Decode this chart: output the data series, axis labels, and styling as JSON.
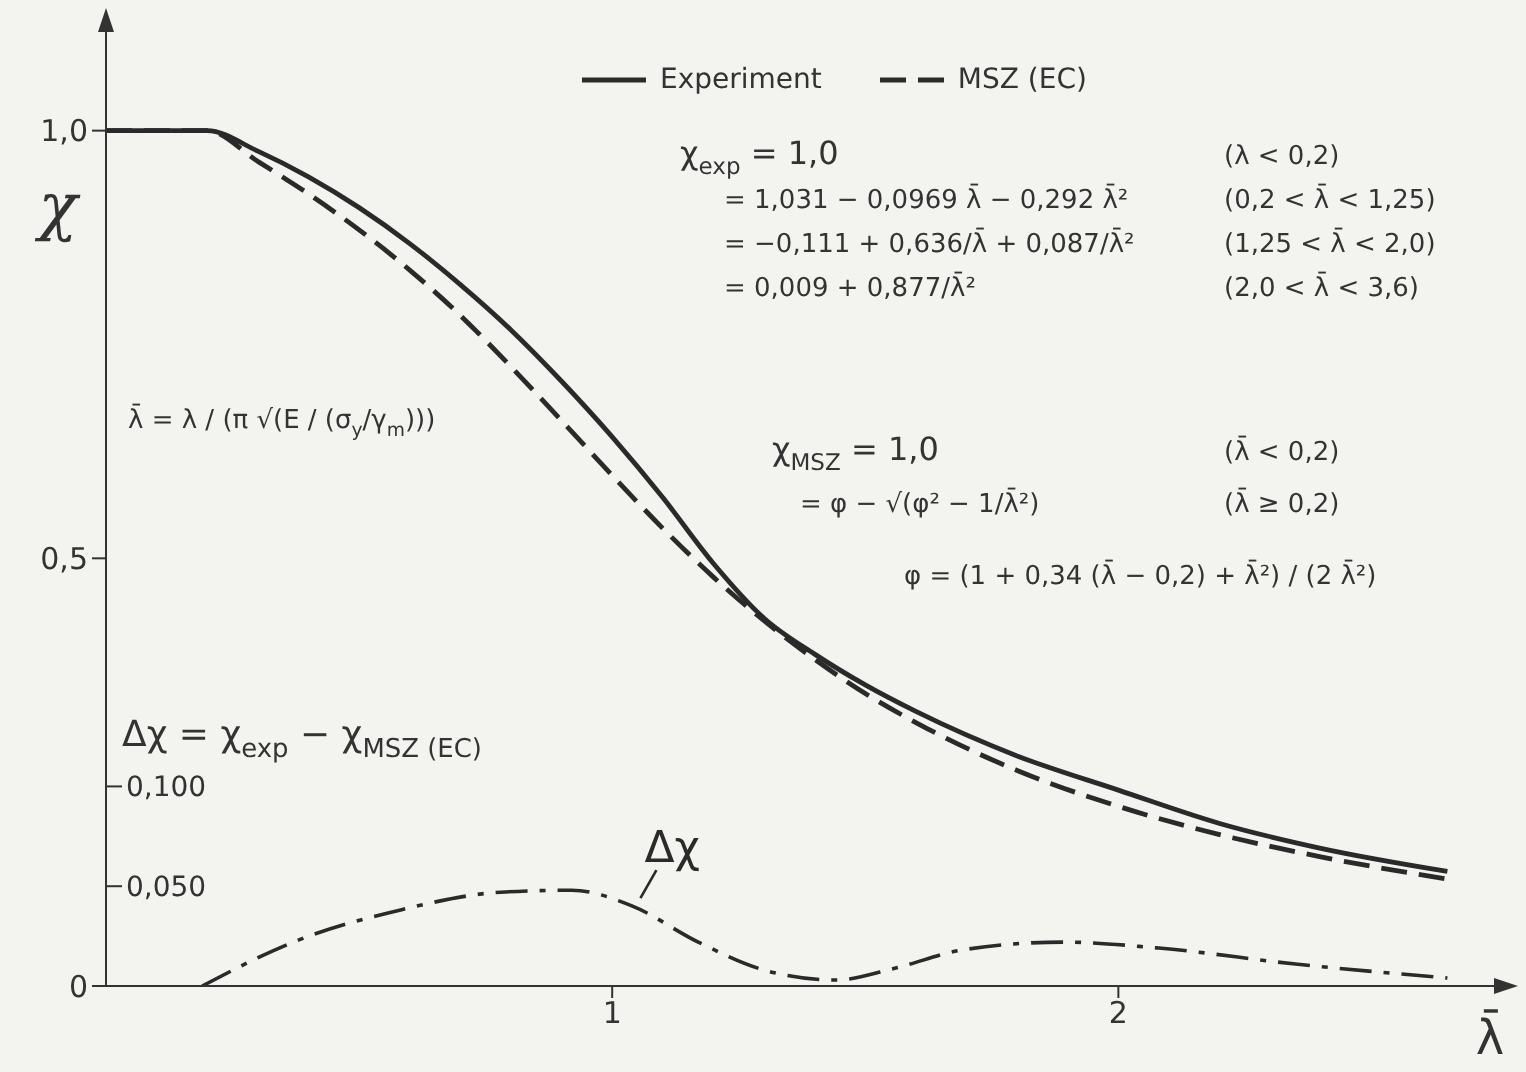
{
  "chart_data": {
    "type": "line",
    "xlabel": "λ̄",
    "ylabel": "χ",
    "y2label": "Δχ = χ$_{exp}$ − χ$_{MSZ (EC)}$",
    "annotations": [
      "λ̄ = λ / (π √(E / (σ$_{y}$/γ$_{m}$)))",
      "χ$_{exp}$ = 1,0",
      "= 1,031 − 0,0969 λ̄ − 0,292 λ̄²",
      "= −0,111 + 0,636/λ̄ + 0,087/λ̄²",
      "= 0,009 + 0,877/λ̄²",
      "(λ < 0,2)",
      "(0,2 < λ̄ < 1,25)",
      "(1,25 < λ̄ < 2,0)",
      "(2,0 < λ̄ < 3,6)",
      "χ$_{MSZ}$ = 1,0",
      "= φ − √(φ² − 1/λ̄²)",
      "(λ̄ < 0,2)",
      "(λ̄ ≥ 0,2)",
      "φ = (1 + 0,34 (λ̄ − 0,2) + λ̄²) / (2 λ̄²)"
    ],
    "x": [
      0,
      0.2,
      0.3,
      0.4,
      0.5,
      0.6,
      0.7,
      0.8,
      0.9,
      1.0,
      1.1,
      1.2,
      1.3,
      1.4,
      1.5,
      1.6,
      1.8,
      2.0,
      2.2,
      2.4,
      2.65
    ],
    "series": [
      {
        "name": "Experiment",
        "color": "#2a2a2a",
        "line_style": "solid",
        "values": [
          1.0,
          1.0,
          0.976,
          0.946,
          0.91,
          0.868,
          0.82,
          0.767,
          0.707,
          0.642,
          0.571,
          0.494,
          0.43,
          0.388,
          0.352,
          0.321,
          0.269,
          0.229,
          0.19,
          0.161,
          0.134
        ]
      },
      {
        "name": "MSZ (EC)",
        "color": "#2a2a2a",
        "line_style": "dashed",
        "values": [
          1.0,
          1.0,
          0.964,
          0.926,
          0.884,
          0.837,
          0.784,
          0.724,
          0.661,
          0.597,
          0.535,
          0.478,
          0.427,
          0.382,
          0.342,
          0.308,
          0.252,
          0.21,
          0.177,
          0.151,
          0.125
        ]
      },
      {
        "name": "Δχ",
        "color": "#2a2a2a",
        "line_style": "dashdot",
        "axis": "y2",
        "x": [
          0.19,
          0.38,
          0.58,
          0.78,
          0.92,
          1.04,
          1.17,
          1.3,
          1.44,
          1.56,
          1.69,
          1.89,
          2.08,
          2.35,
          2.65
        ],
        "values": [
          0,
          0.023,
          0.038,
          0.047,
          0.048,
          0.04,
          0.022,
          0.008,
          0.003,
          0.009,
          0.018,
          0.022,
          0.019,
          0.011,
          0.004
        ]
      }
    ],
    "xlim": [
      0,
      2.75
    ],
    "xticks": [
      1,
      2
    ],
    "ylim": [
      0,
      1.12
    ],
    "yticks": [
      0,
      {
        "value": 0.5,
        "label": "0,5"
      },
      {
        "value": 1,
        "label": "1,0"
      }
    ],
    "y2lim": [
      0,
      0.48
    ],
    "y2ticks": [
      {
        "value": 0.05,
        "label": "0,050"
      },
      {
        "value": 0.1,
        "label": "0,100"
      }
    ],
    "legend": "top",
    "marker": "none"
  }
}
